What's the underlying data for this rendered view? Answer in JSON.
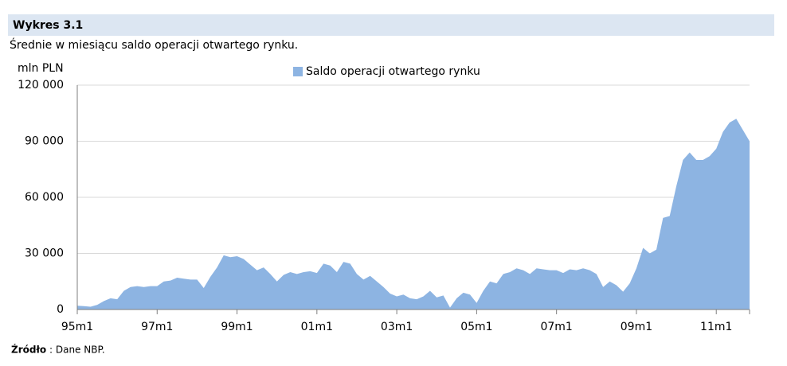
{
  "chart_data": {
    "type": "area",
    "title": "Wykres 3.1",
    "subtitle": "Średnie w miesiącu saldo operacji otwartego rynku.",
    "y_label": "mln PLN",
    "source_label": "Źródło",
    "source_text": ": Dane NBP.",
    "categories": [
      "95m1",
      null,
      null,
      null,
      null,
      null,
      null,
      null,
      null,
      null,
      null,
      null,
      "97m1",
      null,
      null,
      null,
      null,
      null,
      null,
      null,
      null,
      null,
      null,
      null,
      "99m1",
      null,
      null,
      null,
      null,
      null,
      null,
      null,
      null,
      null,
      null,
      null,
      "01m1",
      null,
      null,
      null,
      null,
      null,
      null,
      null,
      null,
      null,
      null,
      null,
      "03m1",
      null,
      null,
      null,
      null,
      null,
      null,
      null,
      null,
      null,
      null,
      null,
      "05m1",
      null,
      null,
      null,
      null,
      null,
      null,
      null,
      null,
      null,
      null,
      null,
      "07m1",
      null,
      null,
      null,
      null,
      null,
      null,
      null,
      null,
      null,
      null,
      null,
      "09m1",
      null,
      null,
      null,
      null,
      null,
      null,
      null,
      null,
      null,
      null,
      null,
      "11m1",
      null,
      null,
      null,
      null,
      null
    ],
    "series": [
      {
        "name": "Saldo operacji otwartego rynku",
        "color": "#8db4e2",
        "values": [
          2000,
          1800,
          1500,
          2500,
          4500,
          6000,
          5500,
          10000,
          12000,
          12500,
          12000,
          12500,
          12500,
          15000,
          15500,
          17000,
          16500,
          16000,
          16000,
          11500,
          17500,
          22500,
          29000,
          28000,
          28500,
          27000,
          24000,
          21000,
          22500,
          19000,
          15000,
          18500,
          20000,
          19000,
          20000,
          20500,
          19500,
          24500,
          23500,
          20000,
          25500,
          24500,
          19000,
          16000,
          18000,
          15000,
          12000,
          8500,
          7000,
          8000,
          6000,
          5500,
          7000,
          10000,
          6500,
          7500,
          1000,
          6000,
          9000,
          8000,
          3500,
          10000,
          15000,
          14000,
          19000,
          20000,
          22000,
          21000,
          19000,
          22000,
          21500,
          21000,
          21000,
          19500,
          21500,
          21000,
          22000,
          21000,
          19000,
          12000,
          15000,
          13000,
          9500,
          14000,
          22000,
          33000,
          30000,
          32000,
          49000,
          50000,
          66000,
          80000,
          84000,
          80000,
          80000,
          82000,
          86000,
          95000,
          100000,
          102000,
          96000,
          90000
        ]
      }
    ],
    "ylim": [
      0,
      120000
    ],
    "yticks": [
      0,
      {
        "value": 30000,
        "label": "30 000"
      },
      {
        "value": 60000,
        "label": "60 000"
      },
      {
        "value": 90000,
        "label": "90 000"
      },
      {
        "value": 120000,
        "label": "120 000"
      }
    ],
    "grid": true,
    "legend": "top"
  }
}
